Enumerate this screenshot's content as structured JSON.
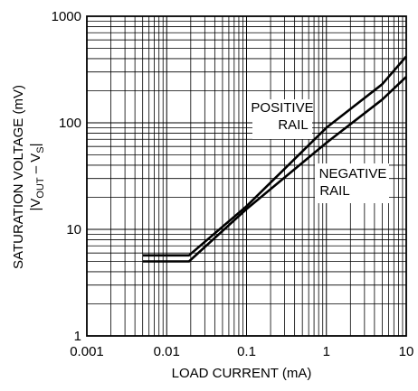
{
  "chart_data": {
    "type": "line",
    "title": "",
    "xlabel": "LOAD CURRENT (mA)",
    "ylabel": "SATURATION VOLTAGE (mV)",
    "ylabel_sub": {
      "prefix": "|V",
      "sub1": "OUT",
      "mid": " – V",
      "sub2": "S",
      "suffix": "|"
    },
    "x_scale": "log",
    "y_scale": "log",
    "xlim": [
      0.001,
      10
    ],
    "ylim": [
      1,
      1000
    ],
    "x_ticks": [
      {
        "value": 0.001,
        "label": "0.001"
      },
      {
        "value": 0.01,
        "label": "0.01"
      },
      {
        "value": 0.1,
        "label": "0.1"
      },
      {
        "value": 1,
        "label": "1"
      },
      {
        "value": 10,
        "label": "10"
      }
    ],
    "y_ticks": [
      {
        "value": 1,
        "label": "1"
      },
      {
        "value": 10,
        "label": "10"
      },
      {
        "value": 100,
        "label": "100"
      },
      {
        "value": 1000,
        "label": "1000"
      }
    ],
    "grid": true,
    "series": [
      {
        "name": "POSITIVE RAIL",
        "label_lines": [
          "POSITIVE",
          "RAIL"
        ],
        "color": "#000000",
        "points": [
          [
            0.005,
            5.7
          ],
          [
            0.019,
            5.7
          ],
          [
            0.1,
            16.5
          ],
          [
            1,
            90
          ],
          [
            5,
            230
          ],
          [
            10,
            420
          ]
        ]
      },
      {
        "name": "NEGATIVE RAIL",
        "label_lines": [
          "NEGATIVE",
          "RAIL"
        ],
        "color": "#000000",
        "points": [
          [
            0.005,
            5.0
          ],
          [
            0.019,
            5.0
          ],
          [
            0.1,
            15.5
          ],
          [
            1,
            65
          ],
          [
            5,
            165
          ],
          [
            10,
            270
          ]
        ]
      }
    ]
  }
}
